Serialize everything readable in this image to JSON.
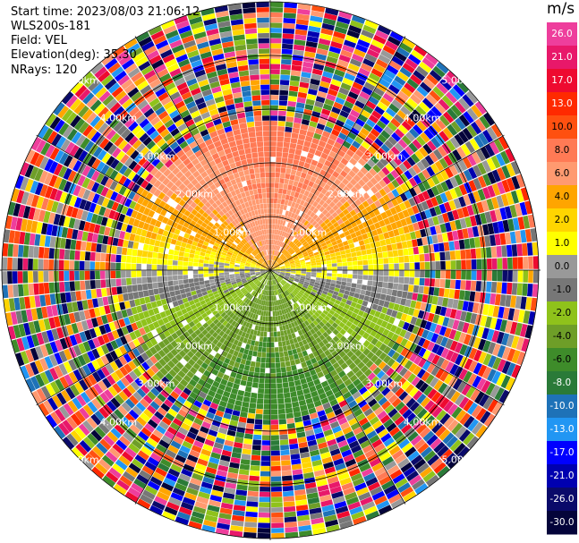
{
  "header": {
    "start_time": "Start time: 2023/08/03 21:06:12",
    "instrument": "WLS200s-181",
    "field": "Field: VEL",
    "elevation": "Elevation(deg): 35.30",
    "nrays": "NRays: 120"
  },
  "colorbar": {
    "unit": "m/s",
    "ticks": [
      "26.0",
      "21.0",
      "17.0",
      "13.0",
      "10.0",
      "8.0",
      "6.0",
      "4.0",
      "2.0",
      "1.0",
      "0.0",
      "-1.0",
      "-2.0",
      "-4.0",
      "-6.0",
      "-8.0",
      "-10.0",
      "-13.0",
      "-17.0",
      "-21.0",
      "-26.0",
      "-30.0"
    ],
    "colors": [
      "#ee3e9c",
      "#e8186a",
      "#ee0a30",
      "#ff2a00",
      "#ff5010",
      "#ff7a55",
      "#ff9a70",
      "#ffa500",
      "#ffd500",
      "#ffff00",
      "#999999",
      "#777777",
      "#8fc21b",
      "#6e9e28",
      "#3e8c2a",
      "#2a7a38",
      "#1e72b8",
      "#2196f3",
      "#0000ff",
      "#0000b0",
      "#0a0a6a",
      "#04043a"
    ]
  },
  "chart_data": {
    "type": "heatmap",
    "projection": "PPI (polar)",
    "nrays": 120,
    "range_rings_km": [
      1.0,
      2.0,
      3.0,
      4.0,
      5.0
    ],
    "ring_labels": [
      "1.00km",
      "2.00km",
      "3.00km",
      "4.00km",
      "5.00km"
    ],
    "variable": "VEL",
    "units": "m/s",
    "value_range": [
      -30.0,
      26.0
    ],
    "pattern": "near-range positive velocities (orange/yellow, north half), near-zero gray band at center, negative velocities (green/blue, south half), noisy random colors beyond ~2.5 km"
  }
}
